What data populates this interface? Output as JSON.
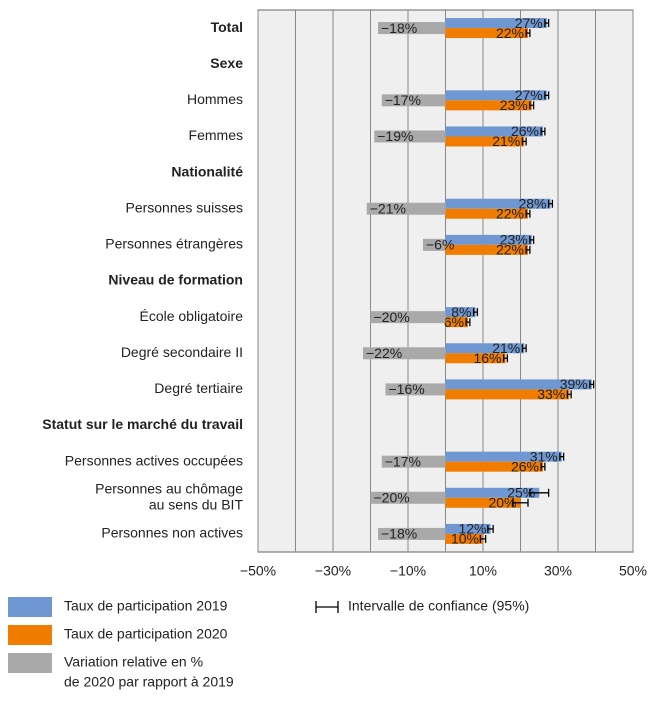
{
  "chart_data": {
    "type": "bar",
    "orientation": "horizontal",
    "categories": [
      "Total",
      "Sexe",
      "Hommes",
      "Femmes",
      "Nationalité",
      "Personnes suisses",
      "Personnes étrangères",
      "Niveau de formation",
      "École obligatoire",
      "Degré secondaire II",
      "Degré tertiaire",
      "Statut sur le marché du travail",
      "Personnes actives occupées",
      [
        "Personnes au chômage",
        "au sens du BIT"
      ],
      "Personnes non actives"
    ],
    "bold_categories": [
      0,
      1,
      4,
      7,
      11
    ],
    "series": [
      {
        "name": "Taux de participation 2019",
        "color": "#6f97d1",
        "label_color": "#eef3fb",
        "values": [
          27,
          null,
          27,
          26,
          null,
          28,
          23,
          null,
          8,
          21,
          39,
          null,
          31,
          25,
          12
        ],
        "value_labels": [
          "27%",
          null,
          "27%",
          "26%",
          null,
          "28%",
          "23%",
          null,
          "8%",
          "21%",
          "39%",
          null,
          "31%",
          "25%",
          "12%"
        ],
        "errors": [
          0.5,
          null,
          0.5,
          0.5,
          null,
          0.5,
          0.5,
          null,
          0.5,
          0.5,
          0.5,
          null,
          0.5,
          2.5,
          0.7
        ]
      },
      {
        "name": "Taux de participation 2020",
        "color": "#f07d00",
        "label_color": "#222222",
        "values": [
          22,
          null,
          23,
          21,
          null,
          22,
          22,
          null,
          6,
          16,
          33,
          null,
          26,
          20,
          10
        ],
        "value_labels": [
          "22%",
          null,
          "23%",
          "21%",
          null,
          "22%",
          "22%",
          null,
          "6%",
          "16%",
          "33%",
          null,
          "26%",
          "20%",
          "10%"
        ],
        "errors": [
          0.5,
          null,
          0.5,
          0.5,
          null,
          0.5,
          0.5,
          null,
          0.5,
          0.5,
          0.5,
          null,
          0.5,
          2,
          0.7
        ]
      },
      {
        "name": [
          "Variation relative en %",
          "de 2020 par rapport à 2019"
        ],
        "color": "#a9a9a9",
        "label_color": "#f2f2f2",
        "values": [
          -18,
          null,
          -17,
          -19,
          null,
          -21,
          -6,
          null,
          -20,
          -22,
          -16,
          null,
          -17,
          -20,
          -18
        ],
        "value_labels": [
          "−18%",
          null,
          "−17%",
          "−19%",
          null,
          "−21%",
          "−6%",
          null,
          "−20%",
          "−22%",
          "−16%",
          null,
          "−17%",
          "−20%",
          "−18%"
        ]
      }
    ],
    "error_legend": "Intervalle de confiance (95%)",
    "xlim": [
      -50,
      50
    ],
    "xticks": [
      {
        "value": -50,
        "label": "−50%"
      },
      {
        "value": -30,
        "label": "−30%"
      },
      {
        "value": -10,
        "label": "−10%"
      },
      {
        "value": 10,
        "label": "10%"
      },
      {
        "value": 30,
        "label": "30%"
      },
      {
        "value": 50,
        "label": "50%"
      }
    ],
    "minor_grid": [
      -40,
      -20,
      0,
      20,
      40
    ],
    "grid": true
  }
}
